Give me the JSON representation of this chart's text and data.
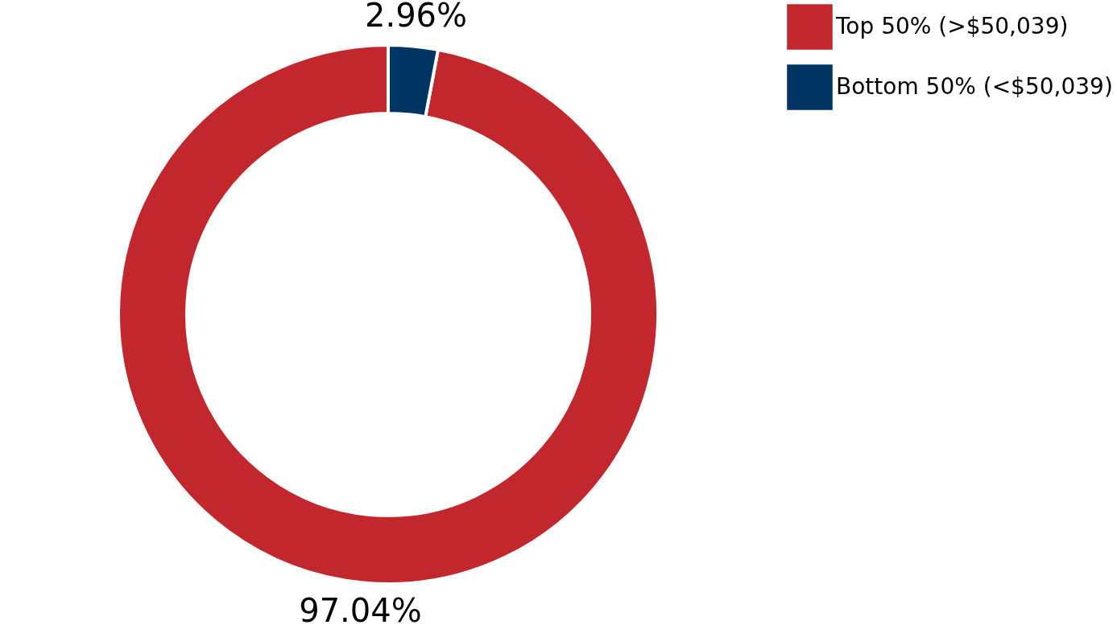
{
  "chart_data": {
    "type": "donut",
    "categories": [
      "Top 50% (>$50,039)",
      "Bottom 50% (<$50,039)"
    ],
    "values": [
      97.04,
      2.96
    ],
    "colors": [
      "#c1272d",
      "#003462"
    ],
    "value_labels": [
      "97.04%",
      "2.96%"
    ],
    "legend": "right"
  }
}
